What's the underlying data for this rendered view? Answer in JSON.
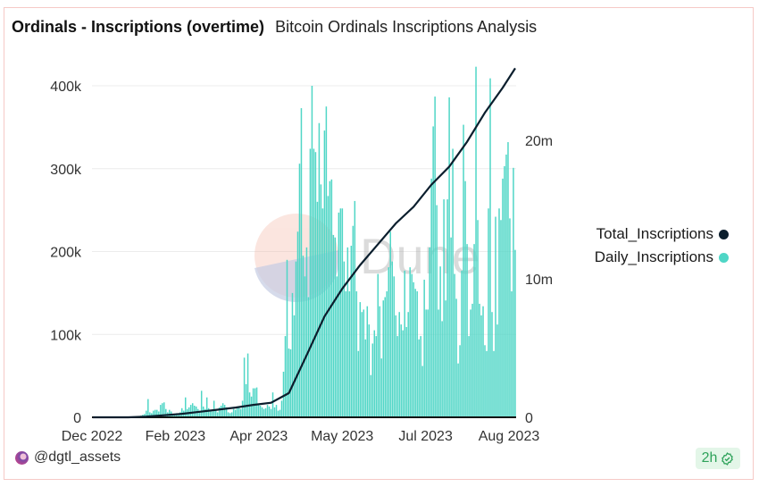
{
  "header": {
    "title": "Ordinals - Inscriptions (overtime)",
    "subtitle": "Bitcoin Ordinals Inscriptions Analysis"
  },
  "watermark": {
    "text": "Dune"
  },
  "footer": {
    "user": "@dgtl_assets",
    "freshness": "2h",
    "freshness_icon": "check-badge-icon"
  },
  "chart_data": {
    "type": "bar+line",
    "title": "Ordinals - Inscriptions (overtime)",
    "x_tick_labels": [
      "Dec 2022",
      "Feb 2023",
      "Apr 2023",
      "May 2023",
      "Jul 2023",
      "Aug 2023"
    ],
    "y_left": {
      "ticks": [
        0,
        100000,
        200000,
        300000,
        400000
      ],
      "tick_labels": [
        "0",
        "100k",
        "200k",
        "300k",
        "400k"
      ],
      "range": [
        0,
        400000
      ]
    },
    "y_right": {
      "ticks": [
        0,
        10000000,
        20000000
      ],
      "tick_labels": [
        "0",
        "10m",
        "20m"
      ],
      "range": [
        0,
        24000000
      ]
    },
    "grid": true,
    "legend_position": "right",
    "colors": {
      "Total_Inscriptions": "#0b1e2d",
      "Daily_Inscriptions": "#4fd6c6"
    },
    "series": [
      {
        "name": "Daily_Inscriptions",
        "type": "bar",
        "axis": "left",
        "values": [
          0,
          0,
          0,
          0,
          0,
          0,
          0,
          0,
          0,
          0,
          0,
          0,
          0,
          0,
          0,
          0,
          0,
          0,
          0,
          0,
          0,
          0,
          0,
          0,
          0,
          0,
          0,
          2000,
          3000,
          4000,
          8000,
          22000,
          6000,
          5000,
          8000,
          9000,
          9000,
          7000,
          15000,
          17000,
          18000,
          10000,
          6000,
          9000,
          7000,
          4000,
          3000,
          5000,
          3000,
          6000,
          11000,
          8000,
          24000,
          10000,
          12000,
          15000,
          17000,
          14000,
          13000,
          10000,
          8000,
          32000,
          13000,
          10000,
          24000,
          11000,
          8000,
          7000,
          20000,
          9000,
          6000,
          12000,
          14000,
          17000,
          15000,
          12000,
          6000,
          5000,
          6000,
          10000,
          9000,
          12000,
          13000,
          10000,
          20000,
          72000,
          40000,
          77000,
          30000,
          25000,
          35000,
          35000,
          36000,
          15000,
          14000,
          12000,
          10000,
          11000,
          15000,
          13000,
          10000,
          30000,
          12000,
          15000,
          8000,
          9000,
          20000,
          55000,
          98000,
          190000,
          83000,
          82000,
          150000,
          123000,
          188000,
          224000,
          306000,
          373000,
          195000,
          170000,
          205000,
          145000,
          324000,
          400000,
          324000,
          320000,
          260000,
          355000,
          281000,
          252000,
          346000,
          375000,
          267000,
          285000,
          287000,
          220000,
          217000,
          170000,
          247000,
          252000,
          252000,
          188000,
          152000,
          205000,
          152000,
          207000,
          231000,
          261000,
          152000,
          80000,
          139000,
          127000,
          130000,
          94000,
          134000,
          112000,
          51000,
          89000,
          105000,
          98000,
          173000,
          134000,
          71000,
          141000,
          145000,
          152000,
          181000,
          224000,
          188000,
          170000,
          123000,
          98000,
          127000,
          112000,
          105000,
          177000,
          109000,
          127000,
          181000,
          173000,
          163000,
          155000,
          152000,
          94000,
          98000,
          62000,
          166000,
          130000,
          130000,
          205000,
          288000,
          351000,
          387000,
          256000,
          130000,
          182000,
          116000,
          263000,
          141000,
          263000,
          386000,
          217000,
          324000,
          173000,
          143000,
          65000,
          87000,
          177000,
          353000,
          285000,
          209000,
          98000,
          130000,
          137000,
          209000,
          423000,
          238000,
          137000,
          123000,
          134000,
          87000,
          80000,
          252000,
          409000,
          127000,
          80000,
          242000,
          112000,
          252000,
          238000,
          288000,
          303000,
          317000,
          332000,
          240000,
          152000,
          301000,
          202000
        ]
      },
      {
        "name": "Total_Inscriptions",
        "type": "line",
        "axis": "right",
        "values": [
          0,
          0,
          0,
          50000,
          150000,
          250000,
          400000,
          550000,
          700000,
          900000,
          1050000,
          1750000,
          4500000,
          7300000,
          9300000,
          11000000,
          12500000,
          14000000,
          15200000,
          16800000,
          18100000,
          19900000,
          22000000,
          23800000,
          25200000
        ]
      }
    ]
  }
}
